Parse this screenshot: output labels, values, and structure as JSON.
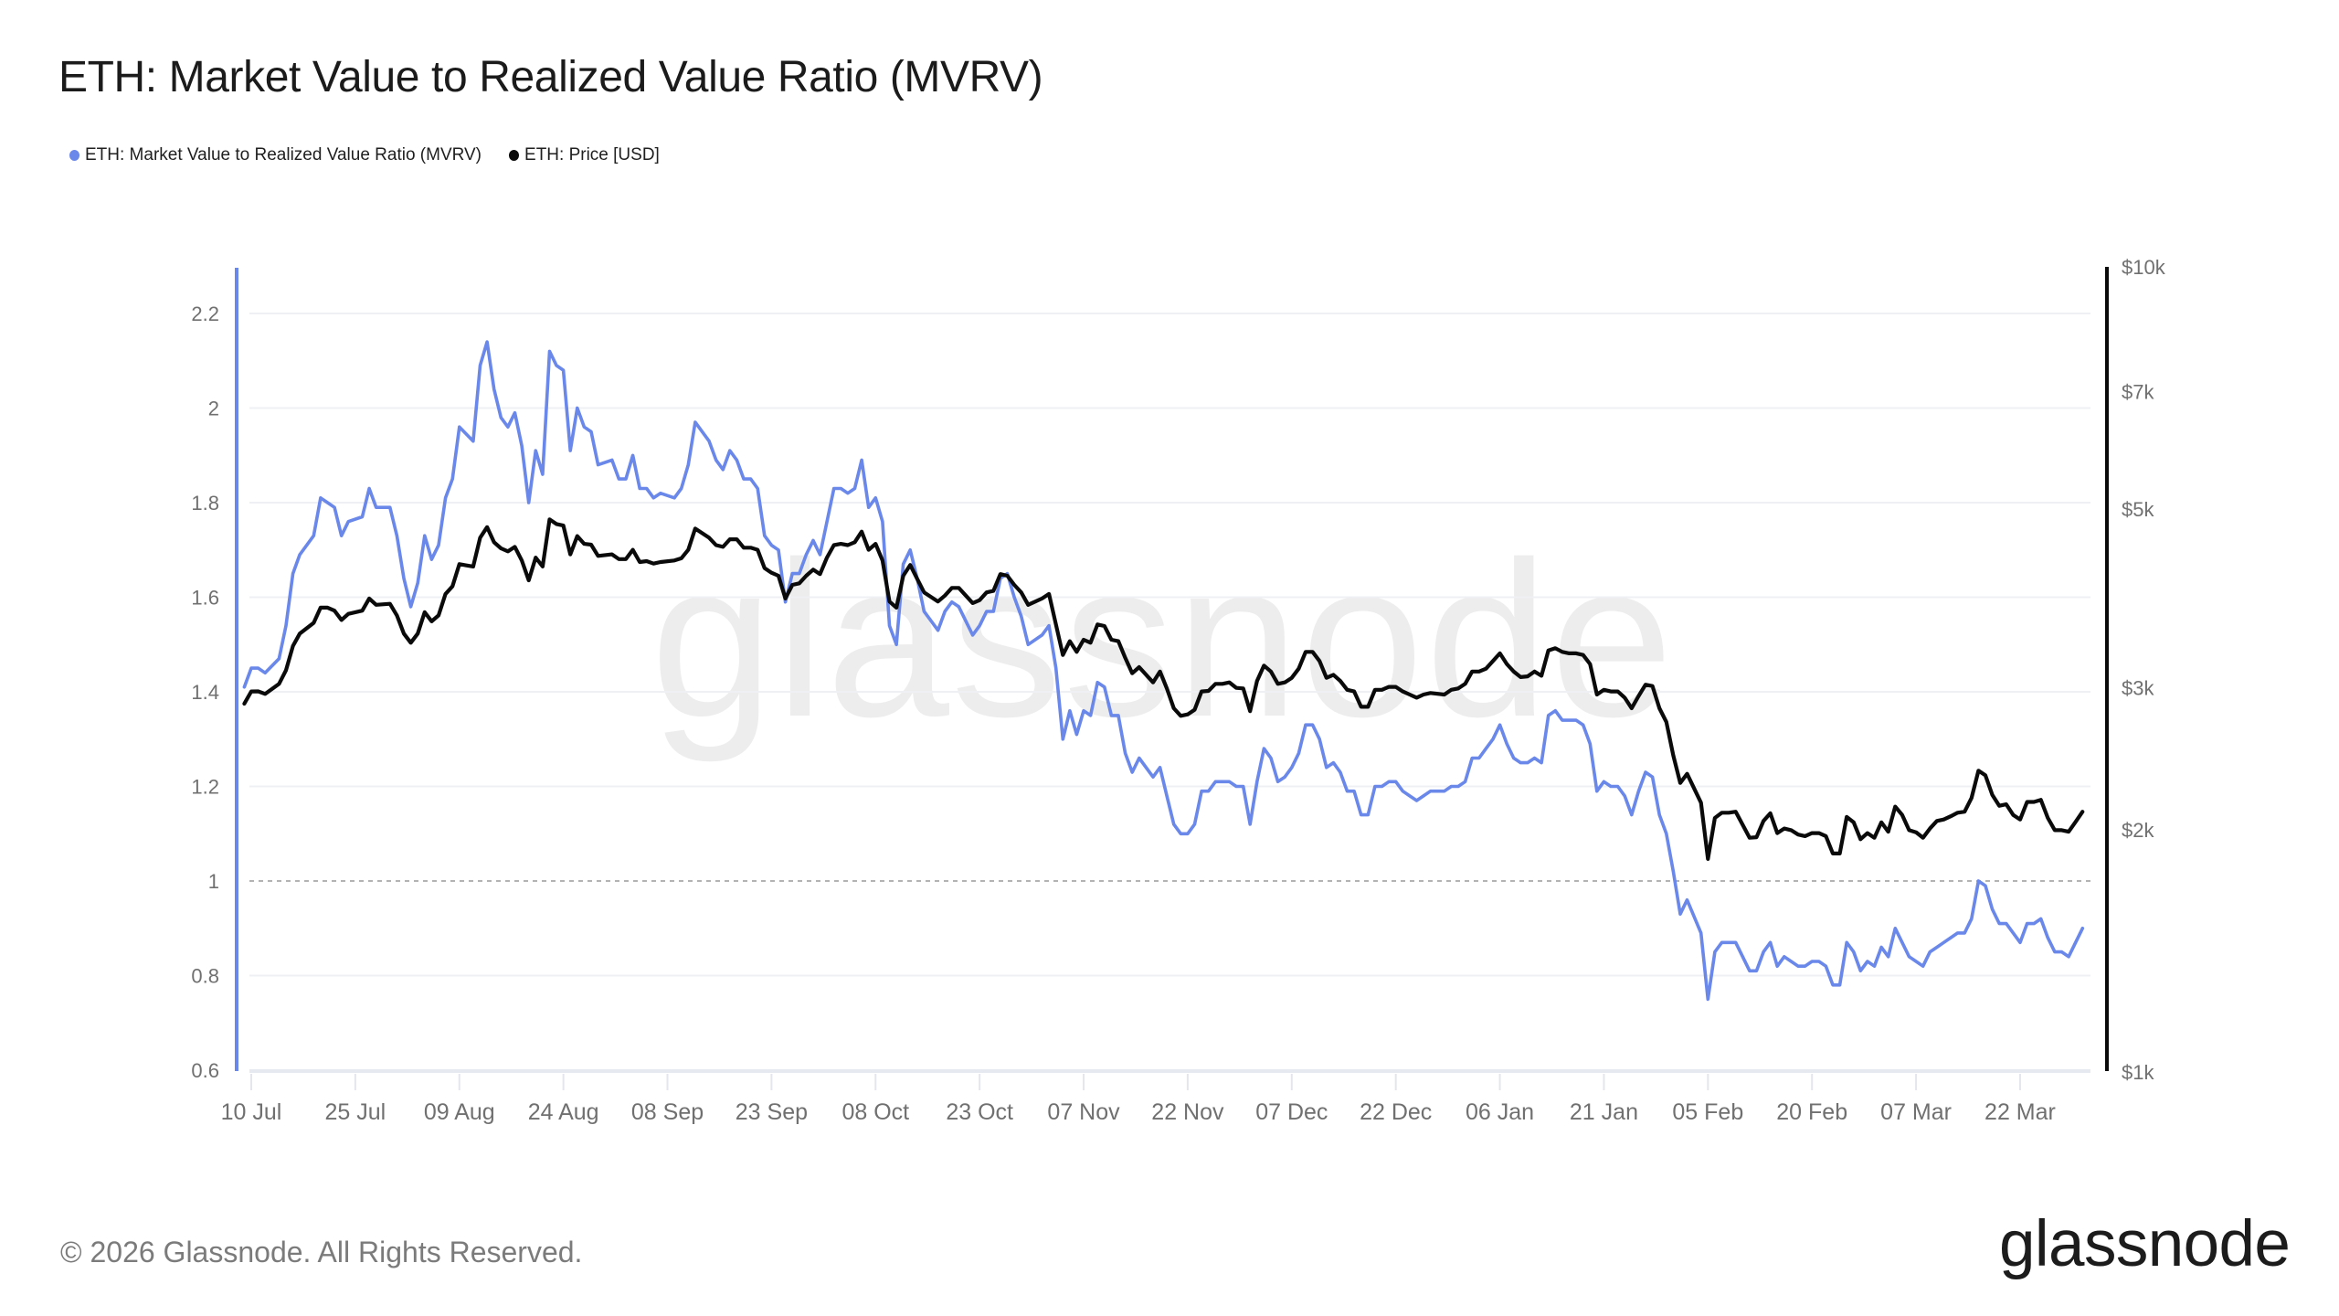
{
  "header": {
    "title": "ETH: Market Value to Realized Value Ratio (MVRV)"
  },
  "legend": {
    "placement": "top-left",
    "items": [
      {
        "label": "ETH: Market Value to Realized Value Ratio (MVRV)",
        "color": "#6A87EA"
      },
      {
        "label": "ETH: Price [USD]",
        "color": "#0A0A0A"
      }
    ]
  },
  "watermark": "glassnode",
  "footer": {
    "copyright": "© 2026 Glassnode. All Rights Reserved.",
    "logo": "glassnode"
  },
  "chart_data": {
    "type": "line",
    "title": "ETH: Market Value to Realized Value Ratio (MVRV)",
    "xlabel": "",
    "ylabel_left": "MVRV",
    "ylabel_right": "Price [USD]",
    "grid": true,
    "legend_placement": "top-left",
    "x_axis": {
      "type": "date",
      "range": [
        "2025-07-09",
        "2026-03-31"
      ],
      "ticks": [
        {
          "label": "10 Jul",
          "date": "2025-07-10"
        },
        {
          "label": "25 Jul",
          "date": "2025-07-25"
        },
        {
          "label": "09 Aug",
          "date": "2025-08-09"
        },
        {
          "label": "24 Aug",
          "date": "2025-08-24"
        },
        {
          "label": "08 Sep",
          "date": "2025-09-08"
        },
        {
          "label": "23 Sep",
          "date": "2025-09-23"
        },
        {
          "label": "08 Oct",
          "date": "2025-10-08"
        },
        {
          "label": "23 Oct",
          "date": "2025-10-23"
        },
        {
          "label": "07 Nov",
          "date": "2025-11-07"
        },
        {
          "label": "22 Nov",
          "date": "2025-11-22"
        },
        {
          "label": "07 Dec",
          "date": "2025-12-07"
        },
        {
          "label": "22 Dec",
          "date": "2025-12-22"
        },
        {
          "label": "06 Jan",
          "date": "2026-01-06"
        },
        {
          "label": "21 Jan",
          "date": "2026-01-21"
        },
        {
          "label": "05 Feb",
          "date": "2026-02-05"
        },
        {
          "label": "20 Feb",
          "date": "2026-02-20"
        },
        {
          "label": "07 Mar",
          "date": "2026-03-07"
        },
        {
          "label": "22 Mar",
          "date": "2026-03-22"
        }
      ]
    },
    "y_axis_left": {
      "scale": "linear",
      "range": [
        0.6,
        2.3
      ],
      "ticks": [
        {
          "label": "0.6",
          "value": 0.6
        },
        {
          "label": "0.8",
          "value": 0.8
        },
        {
          "label": "1",
          "value": 1.0
        },
        {
          "label": "1.2",
          "value": 1.2
        },
        {
          "label": "1.4",
          "value": 1.4
        },
        {
          "label": "1.6",
          "value": 1.6
        },
        {
          "label": "1.8",
          "value": 1.8
        },
        {
          "label": "2",
          "value": 2.0
        },
        {
          "label": "2.2",
          "value": 2.2
        }
      ],
      "reference_line": {
        "value": 1.0,
        "style": "dashed"
      },
      "color": "#6A87EA"
    },
    "y_axis_right": {
      "scale": "log",
      "range": [
        1000,
        10000
      ],
      "ticks": [
        {
          "label": "$1k",
          "value": 1000
        },
        {
          "label": "$2k",
          "value": 2000
        },
        {
          "label": "$3k",
          "value": 3000
        },
        {
          "label": "$5k",
          "value": 5000
        },
        {
          "label": "$7k",
          "value": 7000
        },
        {
          "label": "$10k",
          "value": 10000
        }
      ],
      "color": "#0A0A0A"
    },
    "x": [
      "2025-07-09",
      "2025-07-10",
      "2025-07-11",
      "2025-07-12",
      "2025-07-14",
      "2025-07-15",
      "2025-07-16",
      "2025-07-17",
      "2025-07-19",
      "2025-07-20",
      "2025-07-21",
      "2025-07-22",
      "2025-07-23",
      "2025-07-24",
      "2025-07-26",
      "2025-07-27",
      "2025-07-28",
      "2025-07-30",
      "2025-07-31",
      "2025-08-01",
      "2025-08-02",
      "2025-08-03",
      "2025-08-04",
      "2025-08-05",
      "2025-08-06",
      "2025-08-07",
      "2025-08-08",
      "2025-08-09",
      "2025-08-11",
      "2025-08-12",
      "2025-08-13",
      "2025-08-14",
      "2025-08-15",
      "2025-08-16",
      "2025-08-17",
      "2025-08-18",
      "2025-08-19",
      "2025-08-20",
      "2025-08-21",
      "2025-08-22",
      "2025-08-23",
      "2025-08-24",
      "2025-08-25",
      "2025-08-26",
      "2025-08-27",
      "2025-08-28",
      "2025-08-29",
      "2025-08-31",
      "2025-09-01",
      "2025-09-02",
      "2025-09-03",
      "2025-09-04",
      "2025-09-05",
      "2025-09-06",
      "2025-09-07",
      "2025-09-09",
      "2025-09-10",
      "2025-09-11",
      "2025-09-12",
      "2025-09-14",
      "2025-09-15",
      "2025-09-16",
      "2025-09-17",
      "2025-09-18",
      "2025-09-19",
      "2025-09-20",
      "2025-09-21",
      "2025-09-22",
      "2025-09-23",
      "2025-09-24",
      "2025-09-25",
      "2025-09-26",
      "2025-09-27",
      "2025-09-28",
      "2025-09-29",
      "2025-09-30",
      "2025-10-01",
      "2025-10-02",
      "2025-10-03",
      "2025-10-04",
      "2025-10-05",
      "2025-10-06",
      "2025-10-07",
      "2025-10-08",
      "2025-10-09",
      "2025-10-10",
      "2025-10-11",
      "2025-10-12",
      "2025-10-13",
      "2025-10-14",
      "2025-10-15",
      "2025-10-17",
      "2025-10-18",
      "2025-10-19",
      "2025-10-20",
      "2025-10-22",
      "2025-10-23",
      "2025-10-24",
      "2025-10-25",
      "2025-10-26",
      "2025-10-27",
      "2025-10-28",
      "2025-10-29",
      "2025-10-30",
      "2025-11-01",
      "2025-11-02",
      "2025-11-03",
      "2025-11-04",
      "2025-11-05",
      "2025-11-06",
      "2025-11-07",
      "2025-11-08",
      "2025-11-09",
      "2025-11-10",
      "2025-11-11",
      "2025-11-12",
      "2025-11-13",
      "2025-11-14",
      "2025-11-15",
      "2025-11-17",
      "2025-11-18",
      "2025-11-19",
      "2025-11-20",
      "2025-11-21",
      "2025-11-22",
      "2025-11-23",
      "2025-11-24",
      "2025-11-25",
      "2025-11-26",
      "2025-11-27",
      "2025-11-28",
      "2025-11-29",
      "2025-11-30",
      "2025-12-01",
      "2025-12-02",
      "2025-12-03",
      "2025-12-04",
      "2025-12-05",
      "2025-12-06",
      "2025-12-07",
      "2025-12-08",
      "2025-12-09",
      "2025-12-10",
      "2025-12-11",
      "2025-12-12",
      "2025-12-13",
      "2025-12-14",
      "2025-12-15",
      "2025-12-16",
      "2025-12-17",
      "2025-12-18",
      "2025-12-19",
      "2025-12-20",
      "2025-12-21",
      "2025-12-22",
      "2025-12-23",
      "2025-12-24",
      "2025-12-25",
      "2025-12-26",
      "2025-12-27",
      "2025-12-29",
      "2025-12-30",
      "2025-12-31",
      "2026-01-01",
      "2026-01-02",
      "2026-01-03",
      "2026-01-04",
      "2026-01-05",
      "2026-01-06",
      "2026-01-07",
      "2026-01-08",
      "2026-01-09",
      "2026-01-10",
      "2026-01-11",
      "2026-01-12",
      "2026-01-13",
      "2026-01-14",
      "2026-01-15",
      "2026-01-16",
      "2026-01-17",
      "2026-01-18",
      "2026-01-19",
      "2026-01-20",
      "2026-01-21",
      "2026-01-22",
      "2026-01-23",
      "2026-01-24",
      "2026-01-25",
      "2026-01-26",
      "2026-01-27",
      "2026-01-28",
      "2026-01-29",
      "2026-01-30",
      "2026-01-31",
      "2026-02-01",
      "2026-02-02",
      "2026-02-04",
      "2026-02-05",
      "2026-02-06",
      "2026-02-07",
      "2026-02-08",
      "2026-02-09",
      "2026-02-11",
      "2026-02-12",
      "2026-02-13",
      "2026-02-14",
      "2026-02-15",
      "2026-02-16",
      "2026-02-17",
      "2026-02-18",
      "2026-02-19",
      "2026-02-20",
      "2026-02-21",
      "2026-02-22",
      "2026-02-23",
      "2026-02-24",
      "2026-02-25",
      "2026-02-26",
      "2026-02-27",
      "2026-02-28",
      "2026-03-01",
      "2026-03-02",
      "2026-03-03",
      "2026-03-04",
      "2026-03-05",
      "2026-03-06",
      "2026-03-07",
      "2026-03-08",
      "2026-03-09",
      "2026-03-10",
      "2026-03-11",
      "2026-03-12",
      "2026-03-13",
      "2026-03-14",
      "2026-03-15",
      "2026-03-16",
      "2026-03-17",
      "2026-03-18",
      "2026-03-19",
      "2026-03-20",
      "2026-03-21",
      "2026-03-22",
      "2026-03-23",
      "2026-03-24",
      "2026-03-25",
      "2026-03-26",
      "2026-03-27",
      "2026-03-28",
      "2026-03-29",
      "2026-03-30",
      "2026-03-31"
    ],
    "series": [
      {
        "name": "ETH: Market Value to Realized Value Ratio (MVRV)",
        "axis": "left",
        "color": "#6A87EA",
        "values": [
          1.41,
          1.45,
          1.45,
          1.44,
          1.47,
          1.54,
          1.65,
          1.69,
          1.73,
          1.81,
          1.8,
          1.79,
          1.73,
          1.76,
          1.77,
          1.83,
          1.79,
          1.79,
          1.73,
          1.64,
          1.58,
          1.63,
          1.73,
          1.68,
          1.71,
          1.81,
          1.85,
          1.96,
          1.93,
          2.09,
          2.14,
          2.04,
          1.98,
          1.96,
          1.99,
          1.92,
          1.8,
          1.91,
          1.86,
          2.12,
          2.09,
          2.08,
          1.91,
          2.0,
          1.96,
          1.95,
          1.88,
          1.89,
          1.85,
          1.85,
          1.9,
          1.83,
          1.83,
          1.81,
          1.82,
          1.81,
          1.83,
          1.88,
          1.97,
          1.93,
          1.89,
          1.87,
          1.91,
          1.89,
          1.85,
          1.85,
          1.83,
          1.73,
          1.71,
          1.7,
          1.59,
          1.65,
          1.65,
          1.69,
          1.72,
          1.69,
          1.76,
          1.83,
          1.83,
          1.82,
          1.83,
          1.89,
          1.79,
          1.81,
          1.76,
          1.54,
          1.5,
          1.67,
          1.7,
          1.64,
          1.57,
          1.53,
          1.57,
          1.59,
          1.58,
          1.52,
          1.54,
          1.57,
          1.57,
          1.64,
          1.65,
          1.6,
          1.56,
          1.5,
          1.52,
          1.54,
          1.45,
          1.3,
          1.36,
          1.31,
          1.36,
          1.35,
          1.42,
          1.41,
          1.35,
          1.35,
          1.27,
          1.23,
          1.26,
          1.22,
          1.24,
          1.18,
          1.12,
          1.1,
          1.1,
          1.12,
          1.19,
          1.19,
          1.21,
          1.21,
          1.21,
          1.2,
          1.2,
          1.12,
          1.21,
          1.28,
          1.26,
          1.21,
          1.22,
          1.24,
          1.27,
          1.33,
          1.33,
          1.3,
          1.24,
          1.25,
          1.23,
          1.19,
          1.19,
          1.14,
          1.14,
          1.2,
          1.2,
          1.21,
          1.21,
          1.19,
          1.18,
          1.17,
          1.18,
          1.19,
          1.19,
          1.2,
          1.2,
          1.21,
          1.26,
          1.26,
          1.28,
          1.3,
          1.33,
          1.29,
          1.26,
          1.25,
          1.25,
          1.26,
          1.25,
          1.35,
          1.36,
          1.34,
          1.34,
          1.34,
          1.33,
          1.29,
          1.19,
          1.21,
          1.2,
          1.2,
          1.18,
          1.14,
          1.19,
          1.23,
          1.22,
          1.14,
          1.1,
          1.02,
          0.93,
          0.96,
          0.89,
          0.75,
          0.85,
          0.87,
          0.87,
          0.87,
          0.81,
          0.81,
          0.85,
          0.87,
          0.82,
          0.84,
          0.83,
          0.82,
          0.82,
          0.83,
          0.83,
          0.82,
          0.78,
          0.78,
          0.87,
          0.85,
          0.81,
          0.83,
          0.82,
          0.86,
          0.84,
          0.9,
          0.87,
          0.84,
          0.83,
          0.82,
          0.85,
          0.86,
          0.87,
          0.88,
          0.89,
          0.89,
          0.92,
          1.0,
          0.99,
          0.94,
          0.91,
          0.91,
          0.89,
          0.87,
          0.91,
          0.91,
          0.92,
          0.88,
          0.85,
          0.85,
          0.84,
          0.87,
          0.9
        ]
      },
      {
        "name": "ETH: Price [USD]",
        "axis": "right",
        "color": "#0A0A0A",
        "values": [
          2867,
          2969,
          2970,
          2948,
          3034,
          3155,
          3381,
          3503,
          3612,
          3773,
          3773,
          3741,
          3643,
          3707,
          3741,
          3873,
          3804,
          3815,
          3690,
          3503,
          3413,
          3503,
          3724,
          3628,
          3690,
          3924,
          4010,
          4273,
          4244,
          4609,
          4751,
          4550,
          4471,
          4432,
          4490,
          4318,
          4080,
          4355,
          4244,
          4857,
          4793,
          4772,
          4394,
          4630,
          4529,
          4518,
          4375,
          4394,
          4335,
          4335,
          4452,
          4299,
          4310,
          4280,
          4299,
          4318,
          4345,
          4452,
          4731,
          4609,
          4512,
          4490,
          4588,
          4588,
          4479,
          4479,
          4452,
          4226,
          4170,
          4134,
          3873,
          4027,
          4045,
          4134,
          4207,
          4153,
          4355,
          4512,
          4529,
          4512,
          4550,
          4690,
          4452,
          4529,
          4318,
          3840,
          3773,
          4134,
          4263,
          4098,
          3942,
          3840,
          3906,
          3993,
          3993,
          3823,
          3855,
          3942,
          3958,
          4153,
          4134,
          4027,
          3942,
          3804,
          3873,
          3924,
          3596,
          3296,
          3428,
          3325,
          3443,
          3413,
          3596,
          3580,
          3443,
          3428,
          3268,
          3128,
          3183,
          3047,
          3143,
          2995,
          2830,
          2769,
          2781,
          2818,
          2969,
          2974,
          3034,
          3034,
          3047,
          3000,
          2995,
          2806,
          3060,
          3197,
          3143,
          3034,
          3047,
          3087,
          3169,
          3325,
          3325,
          3239,
          3087,
          3114,
          3060,
          2983,
          2969,
          2842,
          2842,
          2983,
          2983,
          3008,
          3008,
          2969,
          2943,
          2917,
          2943,
          2956,
          2943,
          2983,
          2995,
          3034,
          3143,
          3143,
          3169,
          3239,
          3311,
          3211,
          3143,
          3094,
          3100,
          3143,
          3106,
          3339,
          3360,
          3325,
          3311,
          3311,
          3296,
          3211,
          2943,
          2983,
          2969,
          2969,
          2917,
          2830,
          2931,
          3027,
          3015,
          2830,
          2721,
          2472,
          2286,
          2346,
          2160,
          1839,
          2068,
          2099,
          2099,
          2105,
          1954,
          1957,
          2050,
          2096,
          1980,
          2006,
          1997,
          1972,
          1963,
          1980,
          1980,
          1963,
          1868,
          1868,
          2074,
          2042,
          1946,
          1980,
          1954,
          2042,
          1988,
          2136,
          2086,
          1997,
          1985,
          1954,
          2006,
          2050,
          2059,
          2078,
          2099,
          2105,
          2189,
          2367,
          2336,
          2208,
          2141,
          2150,
          2086,
          2059,
          2165,
          2165,
          2178,
          2068,
          1997,
          1997,
          1988,
          2045,
          2105
        ]
      }
    ]
  }
}
